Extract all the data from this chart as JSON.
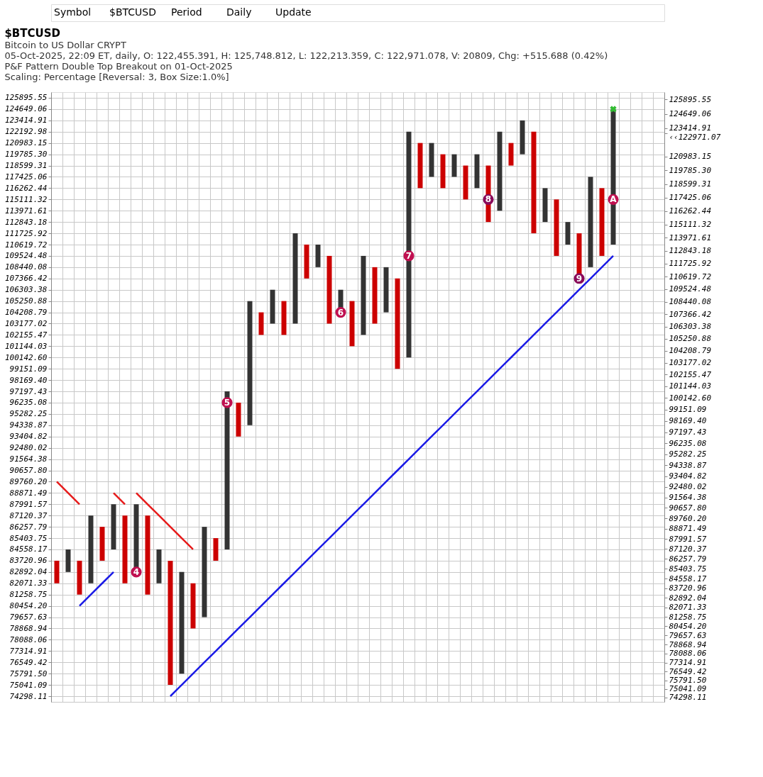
{
  "chart_data": {
    "type": "bar",
    "title": "$BTCUSD",
    "subtitle": [
      "Bitcoin to US Dollar  CRYPT",
      "05-Oct-2025, 22:09 ET, daily, O: 122,455.391, H: 125,748.812, L: 122,213.359, C: 122,971.078, V: 20809, Chg: +515.688 (0.42%)",
      "P&F Pattern  Double Top Breakout on 01-Oct-2025",
      "Scaling: Percentage [Reversal: 3, Box Size:1.0%]"
    ],
    "annotations": [
      "Symbol",
      "$BTCUSD",
      "Period",
      "Daily",
      "Update"
    ],
    "categories": [
      null,
      null,
      null,
      null,
      null,
      null,
      null,
      null,
      null,
      null,
      null,
      null,
      null,
      null,
      null,
      null,
      null,
      null,
      null,
      null,
      null,
      null,
      null,
      null,
      null,
      null,
      null,
      null,
      null,
      null,
      null,
      null,
      null,
      null,
      null,
      null,
      null,
      null,
      null,
      null,
      null,
      null,
      null,
      null,
      null,
      null,
      null,
      null,
      null,
      null,
      null,
      null,
      null,
      null
    ],
    "log": true,
    "grid": true,
    "ylim": [
      73928,
      126525
    ],
    "yticks": [
      125895.55,
      124649.06,
      123414.91,
      122192.98,
      120983.15,
      {
        "value": 119785.3,
        "label": "119785.30"
      },
      118599.31,
      117425.06,
      116262.44,
      115111.32,
      113971.61,
      112843.18,
      111725.92,
      110619.72,
      109524.48,
      108440.08,
      107366.42,
      106303.38,
      105250.88,
      104208.79,
      103177.02,
      102155.47,
      101144.03,
      {
        "value": 100142.6,
        "label": "100142.60"
      },
      99151.09,
      {
        "value": 98169.4,
        "label": "98169.40"
      },
      97197.43,
      96235.08,
      95282.25,
      94338.87,
      93404.82,
      92480.02,
      91564.38,
      {
        "value": 90657.8,
        "label": "90657.80"
      },
      {
        "value": 89760.2,
        "label": "89760.20"
      },
      88871.49,
      87991.57,
      87120.37,
      86257.79,
      85403.75,
      84558.17,
      83720.96,
      82892.04,
      82071.33,
      81258.75,
      {
        "value": 80454.2,
        "label": "80454.20"
      },
      79657.63,
      78868.94,
      78088.06,
      77314.91,
      76549.42,
      {
        "value": 75791.5,
        "label": "75791.50"
      },
      75041.09,
      74298.11
    ],
    "y2lim": [
      73928,
      126525
    ],
    "y2ticks": [
      125895.55,
      124649.06,
      123414.91,
      {
        "value": 122971.07,
        "label": "‹‹122971.07"
      },
      120983.15,
      {
        "value": 119785.3,
        "label": "119785.30"
      },
      118599.31,
      117425.06,
      116262.44,
      115111.32,
      113971.61,
      112843.18,
      111725.92,
      110619.72,
      109524.48,
      108440.08,
      107366.42,
      106303.38,
      105250.88,
      104208.79,
      103177.02,
      102155.47,
      101144.03,
      {
        "value": 100142.6,
        "label": "100142.60"
      },
      99151.09,
      {
        "value": 98169.4,
        "label": "98169.40"
      },
      97197.43,
      96235.08,
      95282.25,
      94338.87,
      93404.82,
      92480.02,
      91564.38,
      {
        "value": 90657.8,
        "label": "90657.80"
      },
      {
        "value": 89760.2,
        "label": "89760.20"
      },
      88871.49,
      87991.57,
      87120.37,
      86257.79,
      85403.75,
      84558.17,
      83720.96,
      82892.04,
      82071.33,
      81258.75,
      {
        "value": 80454.2,
        "label": "80454.20"
      },
      79657.63,
      78868.94,
      78088.06,
      77314.91,
      76549.42,
      {
        "value": 75791.5,
        "label": "75791.50"
      },
      75041.09,
      74298.11
    ],
    "series": [
      {
        "base": [
          82071.33,
          82892.04,
          81258.75,
          82071.33,
          83720.96,
          84558.17,
          82071.33,
          82892.04,
          81258.75,
          82071.33,
          75041.09,
          75791.5,
          78868.94,
          79657.63,
          83720.96,
          84558.17,
          93404.82,
          94338.87,
          102155.47,
          103177.02,
          102155.47,
          103177.02,
          107366.42,
          108440.08,
          103177.02,
          104208.79,
          101144.03,
          102155.47,
          103177.02,
          104208.79,
          99151.09,
          100142.6,
          116262.44,
          117425.06,
          116262.44,
          117425.06,
          115111.32,
          116262.44,
          112843.18,
          113971.61,
          118599.31,
          119785.3,
          111725.92,
          112843.18,
          109524.48,
          110619.72,
          107366.42,
          108440.08,
          109524.48,
          110619.72,
          null,
          null,
          null,
          null
        ],
        "values": [
          1649.63,
          1666.13,
          2462.21,
          5049.04,
          2536.83,
          3433.4,
          5049.04,
          5099.53,
          5861.62,
          2486.84,
          8679.87,
          7100.54,
          3202.39,
          6600.16,
          1682.79,
          12639.26,
          2830.26,
          10912.01,
          2053.32,
          3126.36,
          3095.41,
          8548.9,
          3253.3,
          2179.64,
          6347.46,
          2094.59,
          4106.85,
          7369.01,
          5263.06,
          4231.29,
          8215.33,
          22050.38,
          4720.71,
          3558.09,
          3522.86,
          2360.24,
          3487.99,
          3522.86,
          5756.13,
          8221.37,
          2383.84,
          3629.61,
          10467.06,
          3419.26,
          5586.84,
          2223.46,
          4359.5,
          8984.98,
          6737.96,
          14029.34,
          null,
          null,
          null,
          null
        ],
        "colors": [
          "#cc0000",
          "#333333",
          "#cc0000",
          "#333333",
          "#cc0000",
          "#333333",
          "#cc0000",
          "#333333",
          "#cc0000",
          "#333333",
          "#cc0000",
          "#333333",
          "#cc0000",
          "#333333",
          "#cc0000",
          "#333333",
          "#cc0000",
          "#333333",
          "#cc0000",
          "#333333",
          "#cc0000",
          "#333333",
          "#cc0000",
          "#333333",
          "#cc0000",
          "#333333",
          "#cc0000",
          "#333333",
          "#cc0000",
          "#333333",
          "#cc0000",
          "#333333",
          "#cc0000",
          "#333333",
          "#cc0000",
          "#333333",
          "#cc0000",
          "#333333",
          "#cc0000",
          "#333333",
          "#cc0000",
          "#333333",
          "#cc0000",
          "#333333",
          "#cc0000",
          "#333333",
          "#cc0000",
          "#333333",
          "#cc0000",
          "#333333",
          "#cc0000",
          "#333333",
          "#cc0000",
          "#333333"
        ]
      },
      {
        "type": "line",
        "color": "#1a1ae6",
        "values": [
          null,
          null,
          null,
          null,
          null,
          null,
          null,
          null,
          null,
          null,
          74298.11,
          75041.09,
          75791.5,
          76549.42,
          77314.91,
          78088.06,
          78868.94,
          79657.63,
          80454.2,
          81258.75,
          82071.33,
          82892.04,
          83720.96,
          84558.17,
          85403.75,
          86257.79,
          87120.37,
          87991.57,
          88871.49,
          89760.2,
          90657.8,
          91564.38,
          92480.02,
          93404.82,
          94338.87,
          95282.25,
          96235.08,
          97197.43,
          98169.4,
          99151.09,
          100142.6,
          101144.03,
          102155.47,
          103177.02,
          104208.79,
          105250.88,
          106303.38,
          107366.42,
          108440.08,
          109524.48,
          null,
          null,
          null,
          null
        ]
      },
      {
        "type": "line",
        "color": "#1a1ae6",
        "values": [
          null,
          null,
          80454.2,
          81258.75,
          82071.33,
          82892.04,
          null,
          null,
          null,
          null,
          null,
          null,
          null,
          null,
          null,
          null,
          null,
          null,
          null,
          null,
          null,
          null,
          null,
          null,
          null,
          null,
          null,
          null,
          null,
          null,
          null,
          null,
          null,
          null,
          null,
          null,
          null,
          null,
          null,
          null,
          null,
          null,
          null,
          null,
          null,
          null,
          null,
          null,
          null,
          null,
          null,
          null,
          null,
          null
        ]
      },
      {
        "type": "line",
        "color": "#e61a1a",
        "values": [
          89760.2,
          88871.49,
          87991.57,
          null,
          null,
          null,
          null,
          null,
          null,
          null,
          null,
          null,
          null,
          null,
          null,
          null,
          null,
          null,
          null,
          null,
          null,
          null,
          null,
          null,
          null,
          null,
          null,
          null,
          null,
          null,
          null,
          null,
          null,
          null,
          null,
          null,
          null,
          null,
          null,
          null,
          null,
          null,
          null,
          null,
          null,
          null,
          null,
          null,
          null,
          null,
          null,
          null,
          null,
          null
        ]
      },
      {
        "type": "line",
        "color": "#e61a1a",
        "values": [
          null,
          null,
          null,
          null,
          null,
          88871.49,
          87991.57,
          null,
          null,
          null,
          null,
          null,
          null,
          null,
          null,
          null,
          null,
          null,
          null,
          null,
          null,
          null,
          null,
          null,
          null,
          null,
          null,
          null,
          null,
          null,
          null,
          null,
          null,
          null,
          null,
          null,
          null,
          null,
          null,
          null,
          null,
          null,
          null,
          null,
          null,
          null,
          null,
          null,
          null,
          null,
          null,
          null,
          null,
          null
        ]
      },
      {
        "type": "line",
        "color": "#e61a1a",
        "values": [
          null,
          null,
          null,
          null,
          null,
          null,
          null,
          88871.49,
          87991.57,
          87120.37,
          86257.79,
          85403.75,
          84558.17,
          null,
          null,
          null,
          null,
          null,
          null,
          null,
          null,
          null,
          null,
          null,
          null,
          null,
          null,
          null,
          null,
          null,
          null,
          null,
          null,
          null,
          null,
          null,
          null,
          null,
          null,
          null,
          null,
          null,
          null,
          null,
          null,
          null,
          null,
          null,
          null,
          null,
          null,
          null,
          null,
          null
        ]
      },
      {
        "type": "scatter",
        "name": "4",
        "marker": "circle",
        "color": "#c01050",
        "values": [
          null,
          null,
          null,
          null,
          null,
          null,
          null,
          82892.04,
          null,
          null,
          null,
          null,
          null,
          null,
          null,
          null,
          null,
          null,
          null,
          null,
          null,
          null,
          null,
          null,
          null,
          null,
          null,
          null,
          null,
          null,
          null,
          null,
          null,
          null,
          null,
          null,
          null,
          null,
          null,
          null,
          null,
          null,
          null,
          null,
          null,
          null,
          null,
          null,
          null,
          null,
          null,
          null,
          null,
          null
        ]
      },
      {
        "type": "scatter",
        "name": "5",
        "marker": "circle",
        "color": "#c01050",
        "values": [
          null,
          null,
          null,
          null,
          null,
          null,
          null,
          null,
          null,
          null,
          null,
          null,
          null,
          null,
          null,
          96235.08,
          null,
          null,
          null,
          null,
          null,
          null,
          null,
          null,
          null,
          null,
          null,
          null,
          null,
          null,
          null,
          null,
          null,
          null,
          null,
          null,
          null,
          null,
          null,
          null,
          null,
          null,
          null,
          null,
          null,
          null,
          null,
          null,
          null,
          null,
          null,
          null,
          null,
          null
        ]
      },
      {
        "type": "scatter",
        "name": "6",
        "marker": "circle",
        "color": "#c01050",
        "values": [
          null,
          null,
          null,
          null,
          null,
          null,
          null,
          null,
          null,
          null,
          null,
          null,
          null,
          null,
          null,
          null,
          null,
          null,
          null,
          null,
          null,
          null,
          null,
          null,
          null,
          104208.79,
          null,
          null,
          null,
          null,
          null,
          null,
          null,
          null,
          null,
          null,
          null,
          null,
          null,
          null,
          null,
          null,
          null,
          null,
          null,
          null,
          null,
          null,
          null,
          null,
          null,
          null,
          null,
          null
        ]
      },
      {
        "type": "scatter",
        "name": "7",
        "marker": "circle",
        "color": "#c01050",
        "values": [
          null,
          null,
          null,
          null,
          null,
          null,
          null,
          null,
          null,
          null,
          null,
          null,
          null,
          null,
          null,
          null,
          null,
          null,
          null,
          null,
          null,
          null,
          null,
          null,
          null,
          null,
          null,
          null,
          null,
          null,
          null,
          109524.48,
          null,
          null,
          null,
          null,
          null,
          null,
          null,
          null,
          null,
          null,
          null,
          null,
          null,
          null,
          null,
          null,
          null,
          null,
          null,
          null,
          null,
          null
        ]
      },
      {
        "type": "scatter",
        "name": "8",
        "marker": "circle",
        "color": "#8a0a5a",
        "values": [
          null,
          null,
          null,
          null,
          null,
          null,
          null,
          null,
          null,
          null,
          null,
          null,
          null,
          null,
          null,
          null,
          null,
          null,
          null,
          null,
          null,
          null,
          null,
          null,
          null,
          null,
          null,
          null,
          null,
          null,
          null,
          null,
          null,
          null,
          null,
          null,
          null,
          null,
          115111.32,
          null,
          null,
          null,
          null,
          null,
          null,
          null,
          null,
          null,
          null,
          null,
          null,
          null,
          null,
          null
        ]
      },
      {
        "type": "scatter",
        "name": "9",
        "marker": "circle",
        "color": "#8a0a5a",
        "values": [
          null,
          null,
          null,
          null,
          null,
          null,
          null,
          null,
          null,
          null,
          null,
          null,
          null,
          null,
          null,
          null,
          null,
          null,
          null,
          null,
          null,
          null,
          null,
          null,
          null,
          null,
          null,
          null,
          null,
          null,
          null,
          null,
          null,
          null,
          null,
          null,
          null,
          null,
          null,
          null,
          null,
          null,
          null,
          null,
          null,
          null,
          107366.42,
          null,
          null,
          null,
          null,
          null,
          null,
          null
        ]
      },
      {
        "type": "scatter",
        "name": "A",
        "marker": "circle",
        "color": "#c01050",
        "values": [
          null,
          null,
          null,
          null,
          null,
          null,
          null,
          null,
          null,
          null,
          null,
          null,
          null,
          null,
          null,
          null,
          null,
          null,
          null,
          null,
          null,
          null,
          null,
          null,
          null,
          null,
          null,
          null,
          null,
          null,
          null,
          null,
          null,
          null,
          null,
          null,
          null,
          null,
          null,
          null,
          null,
          null,
          null,
          null,
          null,
          null,
          null,
          null,
          null,
          115111.32,
          null,
          null,
          null,
          null
        ]
      },
      {
        "type": "scatter",
        "marker": "cross",
        "color": "#33bb33",
        "values": [
          null,
          null,
          null,
          null,
          null,
          null,
          null,
          null,
          null,
          null,
          null,
          null,
          null,
          null,
          null,
          null,
          null,
          null,
          null,
          null,
          null,
          null,
          null,
          null,
          null,
          null,
          null,
          null,
          null,
          null,
          null,
          null,
          null,
          null,
          null,
          null,
          null,
          null,
          null,
          null,
          null,
          null,
          null,
          null,
          null,
          null,
          null,
          null,
          null,
          124649.06,
          null,
          null,
          null,
          null
        ]
      }
    ]
  }
}
